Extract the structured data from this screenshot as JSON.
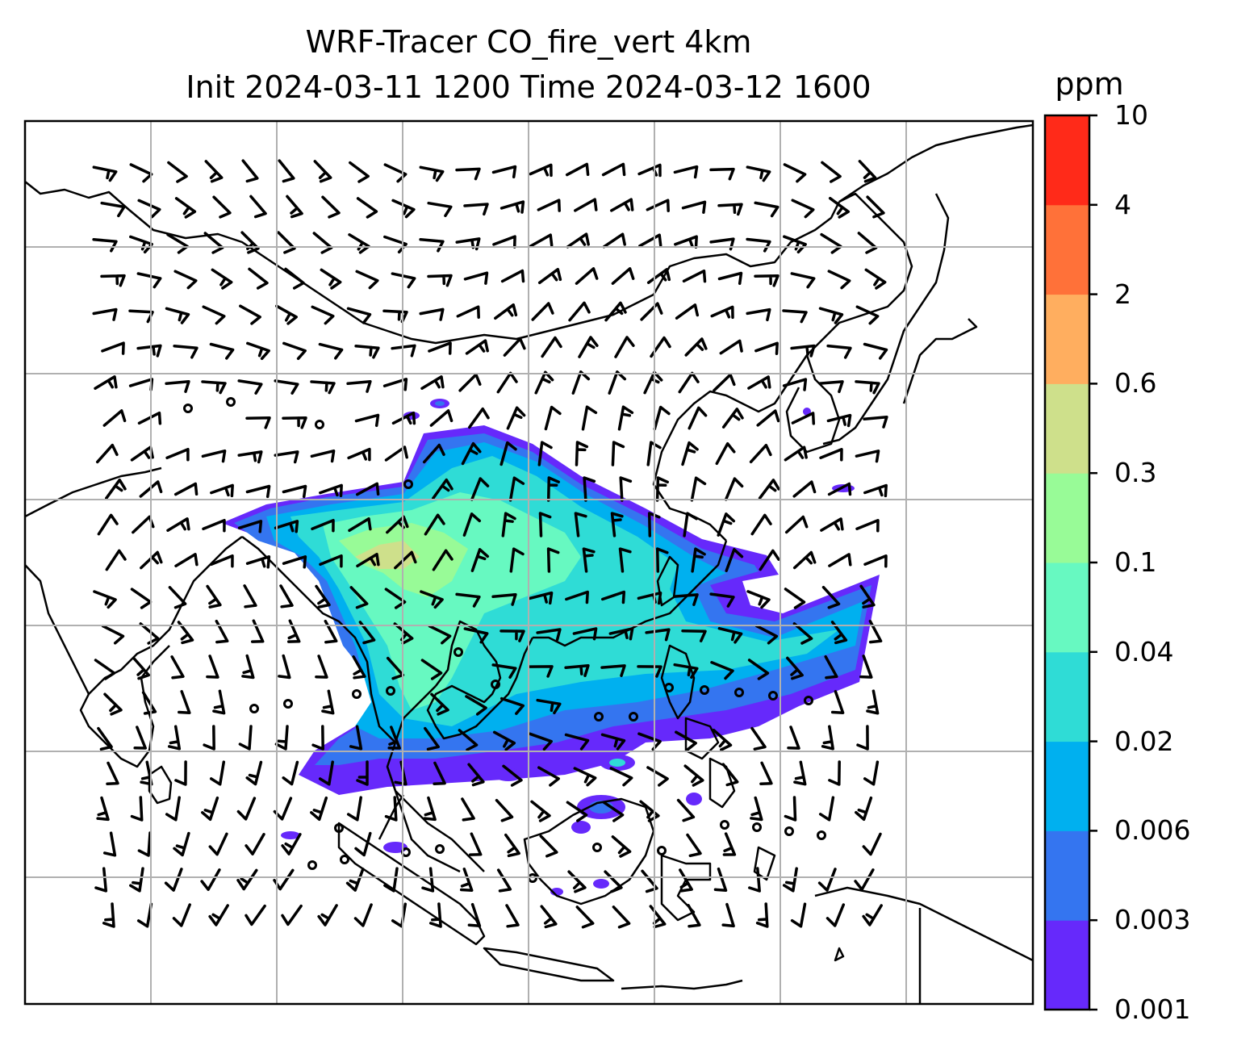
{
  "title": {
    "line1": "WRF-Tracer CO_fire_vert 4km",
    "line2": "Init 2024-03-11 1200 Time 2024-03-12 1600"
  },
  "colorbar": {
    "unit": "ppm",
    "levels": [
      "0.001",
      "0.003",
      "0.006",
      "0.02",
      "0.04",
      "0.1",
      "0.3",
      "0.6",
      "2",
      "4",
      "10"
    ],
    "colors": [
      "#6629fb",
      "#3475f0",
      "#00b0ef",
      "#2fdcd6",
      "#67f9c1",
      "#98fb97",
      "#cee08b",
      "#ffae5f",
      "#ff7139",
      "#ff2a19"
    ]
  },
  "map": {
    "gridlines": true,
    "gridline_color": "#b0b0b0",
    "coastline_color": "#000000"
  }
}
